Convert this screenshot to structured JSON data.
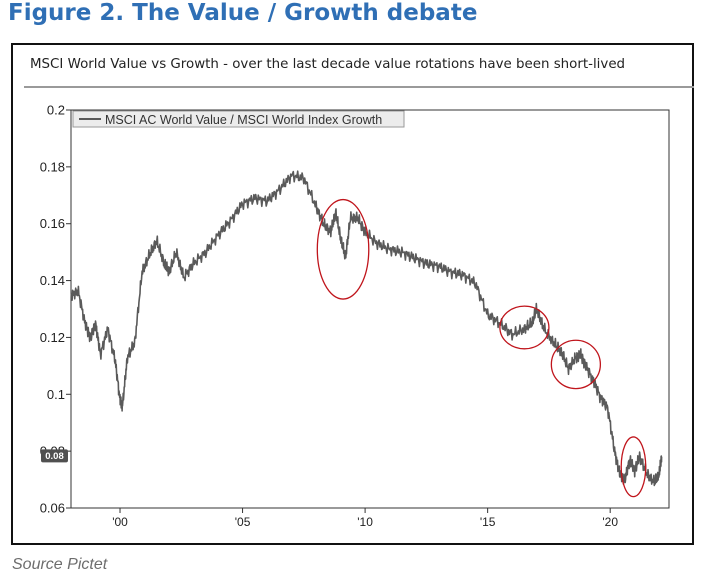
{
  "figure_title": "Figure 2. The Value / Growth debate",
  "source": "Source Pictet",
  "chart_data": {
    "type": "line",
    "title": "MSCI World Value vs Growth - over the last decade value rotations have been short-lived",
    "xlabel": "",
    "ylabel": "",
    "ylim": [
      0.06,
      0.2
    ],
    "yticks": [
      "0.06",
      "0.08",
      "0.1",
      "0.12",
      "0.14",
      "0.16",
      "0.18",
      "0.2"
    ],
    "xlim": [
      1998,
      2022.4
    ],
    "xticks": [
      {
        "value": 2000,
        "label": "'00"
      },
      {
        "value": 2005,
        "label": "'05"
      },
      {
        "value": 2010,
        "label": "'10"
      },
      {
        "value": 2015,
        "label": "'15"
      },
      {
        "value": 2020,
        "label": "'20"
      }
    ],
    "grid": false,
    "legend": {
      "position": "top-left"
    },
    "last_value_label": "0.08",
    "series": [
      {
        "name": "MSCI AC World Value / MSCI World Index Growth",
        "color": "#5a5a5a",
        "points": [
          [
            1998.0,
            0.135
          ],
          [
            1998.3,
            0.136
          ],
          [
            1998.6,
            0.124
          ],
          [
            1998.8,
            0.12
          ],
          [
            1999.0,
            0.125
          ],
          [
            1999.2,
            0.114
          ],
          [
            1999.5,
            0.123
          ],
          [
            1999.8,
            0.112
          ],
          [
            2000.0,
            0.098
          ],
          [
            2000.1,
            0.096
          ],
          [
            2000.3,
            0.113
          ],
          [
            2000.6,
            0.118
          ],
          [
            2000.9,
            0.143
          ],
          [
            2001.2,
            0.149
          ],
          [
            2001.5,
            0.154
          ],
          [
            2001.8,
            0.146
          ],
          [
            2002.0,
            0.143
          ],
          [
            2002.3,
            0.15
          ],
          [
            2002.6,
            0.141
          ],
          [
            2003.0,
            0.146
          ],
          [
            2003.5,
            0.15
          ],
          [
            2004.0,
            0.156
          ],
          [
            2004.5,
            0.161
          ],
          [
            2005.0,
            0.167
          ],
          [
            2005.5,
            0.169
          ],
          [
            2006.0,
            0.168
          ],
          [
            2006.5,
            0.172
          ],
          [
            2007.0,
            0.177
          ],
          [
            2007.5,
            0.176
          ],
          [
            2008.0,
            0.166
          ],
          [
            2008.3,
            0.16
          ],
          [
            2008.6,
            0.157
          ],
          [
            2008.8,
            0.164
          ],
          [
            2009.0,
            0.155
          ],
          [
            2009.2,
            0.148
          ],
          [
            2009.4,
            0.162
          ],
          [
            2009.7,
            0.162
          ],
          [
            2010.0,
            0.157
          ],
          [
            2010.5,
            0.153
          ],
          [
            2011.0,
            0.151
          ],
          [
            2011.5,
            0.15
          ],
          [
            2012.0,
            0.148
          ],
          [
            2012.5,
            0.146
          ],
          [
            2013.0,
            0.145
          ],
          [
            2013.5,
            0.143
          ],
          [
            2014.0,
            0.142
          ],
          [
            2014.5,
            0.139
          ],
          [
            2015.0,
            0.128
          ],
          [
            2015.5,
            0.125
          ],
          [
            2016.0,
            0.121
          ],
          [
            2016.5,
            0.123
          ],
          [
            2016.8,
            0.125
          ],
          [
            2017.0,
            0.13
          ],
          [
            2017.3,
            0.123
          ],
          [
            2017.7,
            0.118
          ],
          [
            2018.0,
            0.115
          ],
          [
            2018.3,
            0.109
          ],
          [
            2018.6,
            0.113
          ],
          [
            2018.8,
            0.114
          ],
          [
            2019.0,
            0.11
          ],
          [
            2019.3,
            0.105
          ],
          [
            2019.6,
            0.099
          ],
          [
            2019.9,
            0.095
          ],
          [
            2020.2,
            0.079
          ],
          [
            2020.4,
            0.072
          ],
          [
            2020.6,
            0.07
          ],
          [
            2020.8,
            0.077
          ],
          [
            2021.0,
            0.073
          ],
          [
            2021.2,
            0.078
          ],
          [
            2021.5,
            0.072
          ],
          [
            2021.8,
            0.069
          ],
          [
            2022.0,
            0.072
          ],
          [
            2022.1,
            0.078
          ]
        ]
      }
    ],
    "annotations": [
      {
        "type": "ellipse",
        "cx": 2009.1,
        "cy": 0.151,
        "rx": 1.05,
        "ry": 0.0175
      },
      {
        "type": "ellipse",
        "cx": 2016.5,
        "cy": 0.1235,
        "rx": 1.0,
        "ry": 0.0075
      },
      {
        "type": "ellipse",
        "cx": 2018.6,
        "cy": 0.1105,
        "rx": 1.0,
        "ry": 0.0085
      },
      {
        "type": "ellipse",
        "cx": 2020.95,
        "cy": 0.0745,
        "rx": 0.5,
        "ry": 0.0105
      }
    ]
  }
}
